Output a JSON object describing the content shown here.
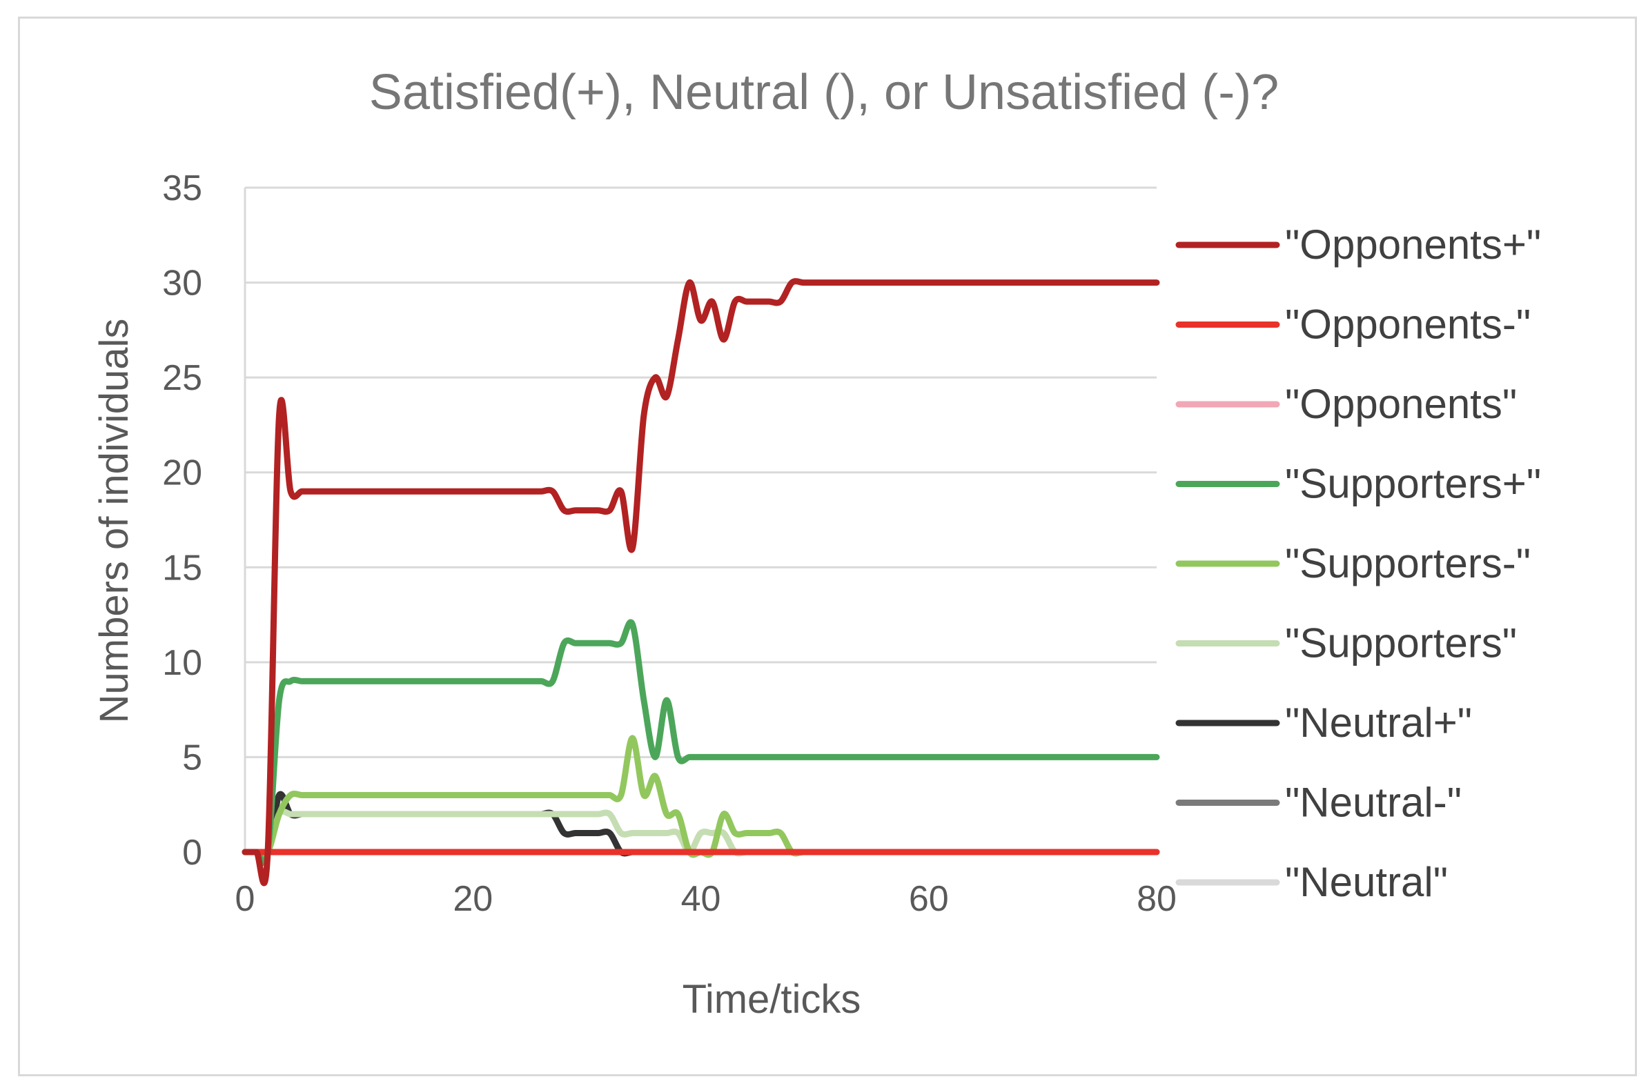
{
  "chart_data": {
    "type": "line",
    "title": "Satisfied(+), Neutral (), or Unsatisfied (-)?",
    "xlabel": "Time/ticks",
    "ylabel": "Numbers of individuals",
    "xlim": [
      0,
      80
    ],
    "ylim": [
      0,
      35
    ],
    "xticks": [
      0,
      20,
      40,
      60,
      80
    ],
    "yticks": [
      0,
      5,
      10,
      15,
      20,
      25,
      30,
      35
    ],
    "grid": "horizontal",
    "legend_position": "right",
    "x": [
      0,
      1,
      2,
      3,
      4,
      5,
      6,
      7,
      8,
      9,
      10,
      11,
      12,
      13,
      14,
      15,
      16,
      17,
      18,
      19,
      20,
      21,
      22,
      23,
      24,
      25,
      26,
      27,
      28,
      29,
      30,
      31,
      32,
      33,
      34,
      35,
      36,
      37,
      38,
      39,
      40,
      41,
      42,
      43,
      44,
      45,
      46,
      47,
      48,
      49,
      50,
      51,
      52,
      53,
      54,
      55,
      56,
      57,
      58,
      59,
      60,
      61,
      62,
      63,
      64,
      65,
      66,
      67,
      68,
      69,
      70,
      71,
      72,
      73,
      74,
      75,
      76,
      77,
      78,
      79,
      80
    ],
    "series": [
      {
        "name": "\"Opponents+\"",
        "color": "#b22222",
        "values": [
          0,
          0,
          0,
          23,
          19,
          19,
          19,
          19,
          19,
          19,
          19,
          19,
          19,
          19,
          19,
          19,
          19,
          19,
          19,
          19,
          19,
          19,
          19,
          19,
          19,
          19,
          19,
          19,
          18,
          18,
          18,
          18,
          18,
          19,
          16,
          23,
          25,
          24,
          27,
          30,
          28,
          29,
          27,
          29,
          29,
          29,
          29,
          29,
          30,
          30,
          30,
          30,
          30,
          30,
          30,
          30,
          30,
          30,
          30,
          30,
          30,
          30,
          30,
          30,
          30,
          30,
          30,
          30,
          30,
          30,
          30,
          30,
          30,
          30,
          30,
          30,
          30,
          30,
          30,
          30,
          30
        ]
      },
      {
        "name": "\"Opponents-\"",
        "color": "#e8322a",
        "values": [
          0,
          0,
          0,
          0,
          0,
          0,
          0,
          0,
          0,
          0,
          0,
          0,
          0,
          0,
          0,
          0,
          0,
          0,
          0,
          0,
          0,
          0,
          0,
          0,
          0,
          0,
          0,
          0,
          0,
          0,
          0,
          0,
          0,
          0,
          0,
          0,
          0,
          0,
          0,
          0,
          0,
          0,
          0,
          0,
          0,
          0,
          0,
          0,
          0,
          0,
          0,
          0,
          0,
          0,
          0,
          0,
          0,
          0,
          0,
          0,
          0,
          0,
          0,
          0,
          0,
          0,
          0,
          0,
          0,
          0,
          0,
          0,
          0,
          0,
          0,
          0,
          0,
          0,
          0,
          0,
          0
        ]
      },
      {
        "name": "\"Opponents\"",
        "color": "#f2a7b5",
        "values": [
          0,
          0,
          0,
          0,
          0,
          0,
          0,
          0,
          0,
          0,
          0,
          0,
          0,
          0,
          0,
          0,
          0,
          0,
          0,
          0,
          0,
          0,
          0,
          0,
          0,
          0,
          0,
          0,
          0,
          0,
          0,
          0,
          0,
          0,
          0,
          0,
          0,
          0,
          0,
          0,
          0,
          0,
          0,
          0,
          0,
          0,
          0,
          0,
          0,
          0,
          0,
          0,
          0,
          0,
          0,
          0,
          0,
          0,
          0,
          0,
          0,
          0,
          0,
          0,
          0,
          0,
          0,
          0,
          0,
          0,
          0,
          0,
          0,
          0,
          0,
          0,
          0,
          0,
          0,
          0,
          0
        ]
      },
      {
        "name": "\"Supporters+\"",
        "color": "#4ca65a",
        "values": [
          0,
          0,
          0,
          8,
          9,
          9,
          9,
          9,
          9,
          9,
          9,
          9,
          9,
          9,
          9,
          9,
          9,
          9,
          9,
          9,
          9,
          9,
          9,
          9,
          9,
          9,
          9,
          9,
          11,
          11,
          11,
          11,
          11,
          11,
          12,
          8,
          5,
          8,
          5,
          5,
          5,
          5,
          5,
          5,
          5,
          5,
          5,
          5,
          5,
          5,
          5,
          5,
          5,
          5,
          5,
          5,
          5,
          5,
          5,
          5,
          5,
          5,
          5,
          5,
          5,
          5,
          5,
          5,
          5,
          5,
          5,
          5,
          5,
          5,
          5,
          5,
          5,
          5,
          5,
          5,
          5
        ]
      },
      {
        "name": "\"Supporters-\"",
        "color": "#92c75e",
        "values": [
          0,
          0,
          0,
          2,
          3,
          3,
          3,
          3,
          3,
          3,
          3,
          3,
          3,
          3,
          3,
          3,
          3,
          3,
          3,
          3,
          3,
          3,
          3,
          3,
          3,
          3,
          3,
          3,
          3,
          3,
          3,
          3,
          3,
          3,
          6,
          3,
          4,
          2,
          2,
          0,
          0,
          0,
          2,
          1,
          1,
          1,
          1,
          1,
          0,
          0,
          0,
          0,
          0,
          0,
          0,
          0,
          0,
          0,
          0,
          0,
          0,
          0,
          0,
          0,
          0,
          0,
          0,
          0,
          0,
          0,
          0,
          0,
          0,
          0,
          0,
          0,
          0,
          0,
          0,
          0,
          0
        ]
      },
      {
        "name": "\"Supporters\"",
        "color": "#c5ddb2",
        "values": [
          0,
          0,
          0,
          2,
          2,
          2,
          2,
          2,
          2,
          2,
          2,
          2,
          2,
          2,
          2,
          2,
          2,
          2,
          2,
          2,
          2,
          2,
          2,
          2,
          2,
          2,
          2,
          2,
          2,
          2,
          2,
          2,
          2,
          1,
          1,
          1,
          1,
          1,
          1,
          0,
          1,
          1,
          1,
          0,
          0,
          0,
          0,
          0,
          0,
          0,
          0,
          0,
          0,
          0,
          0,
          0,
          0,
          0,
          0,
          0,
          0,
          0,
          0,
          0,
          0,
          0,
          0,
          0,
          0,
          0,
          0,
          0,
          0,
          0,
          0,
          0,
          0,
          0,
          0,
          0,
          0
        ]
      },
      {
        "name": "\"Neutral+\"",
        "color": "#333333",
        "values": [
          0,
          0,
          0,
          3,
          2,
          2,
          2,
          2,
          2,
          2,
          2,
          2,
          2,
          2,
          2,
          2,
          2,
          2,
          2,
          2,
          2,
          2,
          2,
          2,
          2,
          2,
          2,
          2,
          1,
          1,
          1,
          1,
          1,
          0,
          0,
          0,
          0,
          0,
          0,
          0,
          0,
          0,
          0,
          0,
          0,
          0,
          0,
          0,
          0,
          0,
          0,
          0,
          0,
          0,
          0,
          0,
          0,
          0,
          0,
          0,
          0,
          0,
          0,
          0,
          0,
          0,
          0,
          0,
          0,
          0,
          0,
          0,
          0,
          0,
          0,
          0,
          0,
          0,
          0,
          0,
          0
        ]
      },
      {
        "name": "\"Neutral-\"",
        "color": "#7a7a7a",
        "values": [
          0,
          0,
          0,
          0,
          0,
          0,
          0,
          0,
          0,
          0,
          0,
          0,
          0,
          0,
          0,
          0,
          0,
          0,
          0,
          0,
          0,
          0,
          0,
          0,
          0,
          0,
          0,
          0,
          0,
          0,
          0,
          0,
          0,
          0,
          0,
          0,
          0,
          0,
          0,
          0,
          0,
          0,
          0,
          0,
          0,
          0,
          0,
          0,
          0,
          0,
          0,
          0,
          0,
          0,
          0,
          0,
          0,
          0,
          0,
          0,
          0,
          0,
          0,
          0,
          0,
          0,
          0,
          0,
          0,
          0,
          0,
          0,
          0,
          0,
          0,
          0,
          0,
          0,
          0,
          0,
          0
        ]
      },
      {
        "name": "\"Neutral\"",
        "color": "#d9d9d9",
        "values": [
          0,
          0,
          0,
          0,
          0,
          0,
          0,
          0,
          0,
          0,
          0,
          0,
          0,
          0,
          0,
          0,
          0,
          0,
          0,
          0,
          0,
          0,
          0,
          0,
          0,
          0,
          0,
          0,
          0,
          0,
          0,
          0,
          0,
          0,
          0,
          0,
          0,
          0,
          0,
          0,
          0,
          0,
          0,
          0,
          0,
          0,
          0,
          0,
          0,
          0,
          0,
          0,
          0,
          0,
          0,
          0,
          0,
          0,
          0,
          0,
          0,
          0,
          0,
          0,
          0,
          0,
          0,
          0,
          0,
          0,
          0,
          0,
          0,
          0,
          0,
          0,
          0,
          0,
          0,
          0,
          0
        ]
      }
    ]
  }
}
